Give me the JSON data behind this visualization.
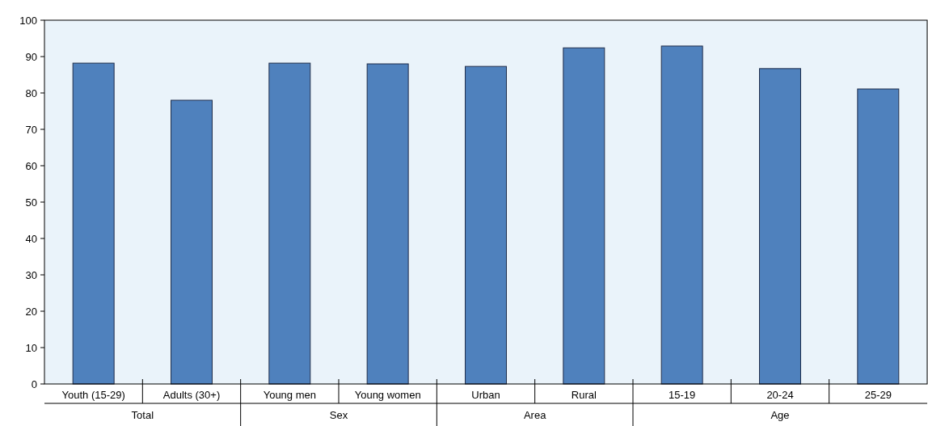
{
  "chart_data": {
    "type": "bar",
    "categories": [
      "Youth (15-29)",
      "Adults (30+)",
      "Young men",
      "Young women",
      "Urban",
      "Rural",
      "15-19",
      "20-24",
      "25-29"
    ],
    "values": [
      88.2,
      78.0,
      88.2,
      88.0,
      87.3,
      92.4,
      92.9,
      86.7,
      81.1
    ],
    "color": "#4f81bd",
    "ylim": [
      0,
      100
    ],
    "yticks": [
      0,
      10,
      20,
      30,
      40,
      50,
      60,
      70,
      80,
      90,
      100
    ],
    "grid": false,
    "annotations": [
      "Total",
      "Sex",
      "Area",
      "Age"
    ]
  }
}
